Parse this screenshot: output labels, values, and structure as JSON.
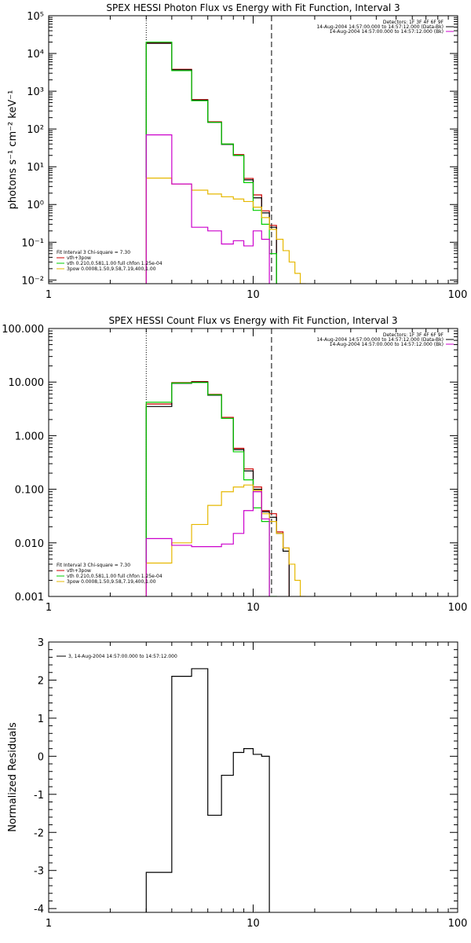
{
  "chart_data": [
    {
      "type": "line",
      "title": "SPEX HESSI Photon Flux vs Energy with Fit Function, Interval 3",
      "ylabel": "photons s⁻¹ cm⁻² keV⁻¹",
      "xscale": "log",
      "yscale": "log",
      "xlim": [
        1,
        100
      ],
      "ylim": [
        0.008,
        100000
      ],
      "xticks": [
        1,
        10,
        100
      ],
      "xtick_labels": [
        "1",
        "10",
        "100"
      ],
      "yticks": [
        0.01,
        0.1,
        1,
        10,
        100,
        1000,
        10000,
        100000
      ],
      "ytick_labels": [
        "10⁻²",
        "10⁻¹",
        "10⁰",
        "10¹",
        "10²",
        "10³",
        "10⁴",
        "10⁵"
      ],
      "vlines": [
        {
          "x": 3.0,
          "style": "dotted"
        },
        {
          "x": 12.3,
          "style": "dashed"
        }
      ],
      "header_lines": [
        {
          "text": "Detectors: 1F 3F 4F 6F 9F",
          "color": "#000000"
        },
        {
          "text": "14-Aug-2004 14:57:00.000 to 14:57:12.000 (Data-Bk)",
          "color": "#000000"
        },
        {
          "text": "14-Aug-2004 14:57:00.000 to 14:57:12.000 (Bk)",
          "color": "#cc00cc"
        }
      ],
      "legend_title": "Fit Interval 3   Chi-square = 7.30",
      "legend_position": "lower-left",
      "edges": [
        3.0,
        4.0,
        5.0,
        6.0,
        7.0,
        8.0,
        9.0,
        10.0,
        11.0,
        12.0,
        13.0,
        14.0,
        15.0,
        16.0,
        17.0,
        18.0
      ],
      "series": [
        {
          "name": "vth+3pow",
          "color": "#cc0000",
          "values": [
            19000,
            3800,
            600,
            155,
            40,
            21,
            4.9,
            1.8,
            0.68,
            0.28,
            null,
            null,
            null,
            null,
            null
          ]
        },
        {
          "name": "",
          "color": "#000000",
          "values": [
            18500,
            3700,
            580,
            150,
            39,
            20,
            4.5,
            1.5,
            0.6,
            0.25,
            null,
            null,
            null,
            null,
            null
          ]
        },
        {
          "name": "vth 0.210,0.581,1.00  full chfon 1.25e-04",
          "color": "#00cc00",
          "values": [
            20000,
            3500,
            560,
            150,
            40,
            20,
            3.8,
            0.7,
            0.3,
            0.05,
            null,
            null,
            null,
            null,
            null
          ]
        },
        {
          "name": "3pow 0.0008,1.50,9.58,7.19,400,1.00",
          "color": "#e6b800",
          "values": [
            5.0,
            3.5,
            2.4,
            1.9,
            1.6,
            1.4,
            1.2,
            0.85,
            0.45,
            0.22,
            0.12,
            0.06,
            0.03,
            0.015,
            0.008
          ]
        },
        {
          "name": "",
          "color": "#cc00cc",
          "values": [
            70,
            3.5,
            0.25,
            0.2,
            0.09,
            0.11,
            0.08,
            0.2,
            0.12,
            null,
            null,
            null,
            null,
            null,
            null
          ]
        }
      ]
    },
    {
      "type": "line",
      "title": "SPEX HESSI Count Flux vs Energy with Fit Function, Interval 3",
      "ylabel": "",
      "xscale": "log",
      "yscale": "log",
      "xlim": [
        1,
        100
      ],
      "ylim": [
        0.001,
        100
      ],
      "xticks": [
        1,
        10,
        100
      ],
      "xtick_labels": [
        "1",
        "10",
        "100"
      ],
      "yticks": [
        0.001,
        0.01,
        0.1,
        1,
        10,
        100
      ],
      "ytick_labels": [
        "0.001",
        "0.010",
        "0.100",
        "1.000",
        "10.000",
        "100.000"
      ],
      "vlines": [
        {
          "x": 3.0,
          "style": "dotted"
        },
        {
          "x": 12.3,
          "style": "dashed"
        }
      ],
      "header_lines": [
        {
          "text": "Detectors: 1F 3F 4F 6F 9F",
          "color": "#000000"
        },
        {
          "text": "14-Aug-2004 14:57:00.000 to 14:57:12.000 (Data-Bk)",
          "color": "#000000"
        },
        {
          "text": "14-Aug-2004 14:57:00.000 to 14:57:12.000 (Bk)",
          "color": "#cc00cc"
        }
      ],
      "legend_title": "Fit Interval 3   Chi-square = 7.30",
      "legend_position": "lower-left",
      "edges": [
        3.0,
        4.0,
        5.0,
        6.0,
        7.0,
        8.0,
        9.0,
        10.0,
        11.0,
        12.0,
        13.0,
        14.0,
        15.0,
        16.0,
        17.0,
        18.0
      ],
      "series": [
        {
          "name": "vth+3pow",
          "color": "#cc0000",
          "values": [
            3.9,
            9.8,
            10.2,
            5.9,
            2.2,
            0.58,
            0.24,
            0.11,
            0.04,
            0.035,
            0.016,
            0.008,
            null,
            null,
            null
          ]
        },
        {
          "name": "",
          "color": "#000000",
          "values": [
            3.5,
            9.5,
            10.0,
            5.7,
            2.1,
            0.55,
            0.22,
            0.1,
            0.038,
            0.03,
            0.015,
            0.007,
            null,
            null,
            null
          ]
        },
        {
          "name": "vth 0.210,0.581,1.00  full chfon 1.25e-04",
          "color": "#00cc00",
          "values": [
            4.2,
            9.6,
            9.8,
            5.8,
            2.1,
            0.5,
            0.15,
            0.045,
            0.025,
            0.001,
            null,
            null,
            null,
            null,
            null
          ]
        },
        {
          "name": "3pow 0.0008,1.50,9.58,7.19,400,1.00",
          "color": "#e6b800",
          "values": [
            0.0042,
            0.01,
            0.022,
            0.05,
            0.09,
            0.11,
            0.12,
            0.095,
            0.035,
            0.025,
            0.015,
            0.008,
            0.004,
            0.002,
            0.001
          ]
        },
        {
          "name": "",
          "color": "#cc00cc",
          "values": [
            0.012,
            0.009,
            0.0085,
            0.0085,
            0.0095,
            0.015,
            0.04,
            0.09,
            0.028,
            null,
            null,
            null,
            null,
            null,
            null
          ]
        }
      ]
    },
    {
      "type": "line",
      "title": "",
      "ylabel": "Normalized Residuals",
      "xscale": "log",
      "yscale": "linear",
      "xlim": [
        1,
        100
      ],
      "ylim": [
        -4.1,
        3.0
      ],
      "xticks": [
        1,
        10,
        100
      ],
      "xtick_labels": [
        "1",
        "10",
        "100"
      ],
      "yticks": [
        -4,
        -3,
        -2,
        -1,
        0,
        1,
        2,
        3
      ],
      "ytick_labels": [
        "-4",
        "-3",
        "-2",
        "-1",
        "0",
        "1",
        "2",
        "3"
      ],
      "legend_position": "top-left",
      "edges": [
        3.0,
        4.0,
        5.0,
        6.0,
        7.0,
        8.0,
        9.0,
        10.0,
        11.0,
        12.0
      ],
      "series": [
        {
          "name": "3, 14-Aug-2004 14:57:00.000 to 14:57:12.000",
          "color": "#000000",
          "values": [
            -3.05,
            2.1,
            2.3,
            -1.55,
            -0.5,
            0.1,
            0.2,
            0.05,
            0.0
          ]
        }
      ]
    }
  ]
}
